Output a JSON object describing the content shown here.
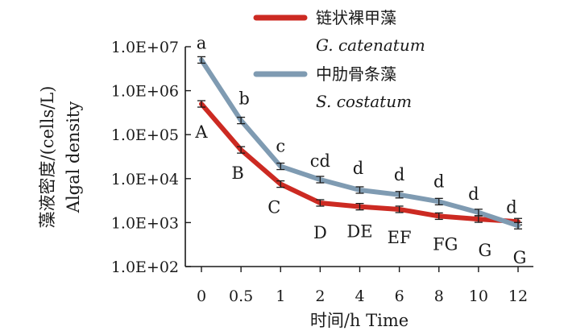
{
  "chart_data": {
    "type": "line",
    "yscale": "log",
    "ylim": [
      100,
      10000000
    ],
    "xlabel": "时间/h  Time",
    "ylabel_cn": "藻液密度/(cells/L)",
    "ylabel_en": "Algal  density",
    "categories": [
      "0",
      "0.5",
      "1",
      "2",
      "4",
      "6",
      "8",
      "10",
      "12"
    ],
    "yticks": [
      "1.0E+02",
      "1.0E+03",
      "1.0E+04",
      "1.0E+05",
      "1.0E+06",
      "1.0E+07"
    ],
    "series": [
      {
        "name": "链状裸甲藻",
        "latin": "G. catenatum",
        "color": "#cc2a22",
        "values": [
          500000,
          45000,
          7500,
          2800,
          2300,
          2000,
          1400,
          1200,
          1050
        ],
        "labels": [
          "A",
          "B",
          "C",
          "D",
          "DE",
          "EF",
          "FG",
          "G",
          "G"
        ]
      },
      {
        "name": "中肋骨条藻",
        "latin": "S. costatum",
        "color": "#7f9bb2",
        "values": [
          5000000,
          210000,
          19000,
          9500,
          5500,
          4300,
          3000,
          1700,
          850
        ],
        "labels": [
          "a",
          "b",
          "c",
          "cd",
          "d",
          "d",
          "d",
          "d",
          "d"
        ]
      }
    ]
  }
}
